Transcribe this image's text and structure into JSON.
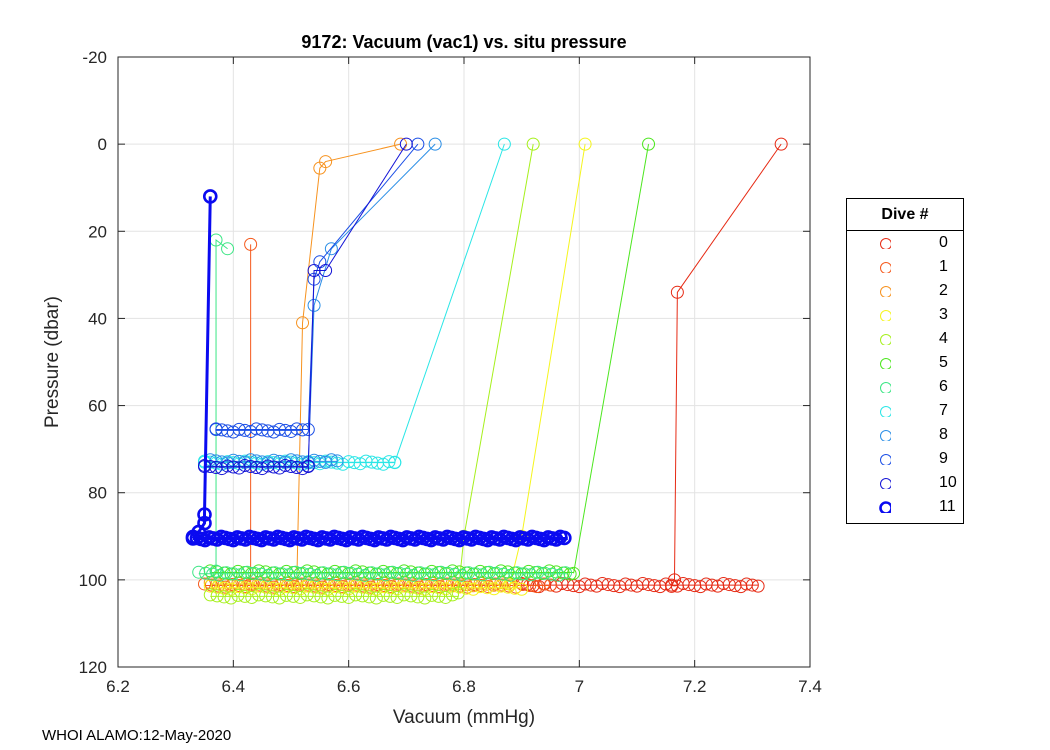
{
  "chart_data": {
    "type": "scatter",
    "title": "9172: Vacuum (vac1) vs. situ pressure",
    "xlabel": "Vacuum (mmHg)",
    "ylabel": "Pressure (dbar)",
    "xlim": [
      6.2,
      7.4
    ],
    "ylim": [
      -20,
      120
    ],
    "y_reversed": true,
    "x_ticks": [
      "6.2",
      "6.4",
      "6.6",
      "6.8",
      "7",
      "7.2",
      "7.4"
    ],
    "y_ticks": [
      "-20",
      "0",
      "20",
      "40",
      "60",
      "80",
      "100",
      "120"
    ],
    "grid": true,
    "legend_title": "Dive #",
    "legend_position": "right",
    "series": [
      {
        "name": "0",
        "color": "#e62a14",
        "profiles": [
          [
            [
              7.35,
              0
            ],
            [
              7.17,
              34
            ],
            [
              7.165,
              100
            ],
            [
              7.16,
              101.5
            ]
          ]
        ],
        "floor": {
          "x0": 6.9,
          "x1": 7.31,
          "y": 101.2,
          "step": 0.01
        }
      },
      {
        "name": "1",
        "color": "#f5591c",
        "profiles": [
          [
            [
              6.43,
              23
            ],
            [
              6.43,
              101
            ]
          ]
        ],
        "floor": {
          "x0": 6.35,
          "x1": 6.95,
          "y": 101.3,
          "step": 0.012
        }
      },
      {
        "name": "2",
        "color": "#f7921e",
        "profiles": [
          [
            [
              6.69,
              0
            ],
            [
              6.56,
              4
            ],
            [
              6.55,
              5.5
            ],
            [
              6.52,
              41
            ],
            [
              6.51,
              101
            ]
          ]
        ],
        "floor": {
          "x0": 6.36,
          "x1": 6.88,
          "y": 101.0,
          "step": 0.012
        }
      },
      {
        "name": "3",
        "color": "#f5f51c",
        "profiles": [
          [
            [
              7.01,
              0
            ],
            [
              6.9,
              90
            ],
            [
              6.88,
              101
            ]
          ]
        ],
        "floor": {
          "x0": 6.36,
          "x1": 6.9,
          "y": 101.8,
          "step": 0.012
        }
      },
      {
        "name": "4",
        "color": "#a6f01c",
        "profiles": [
          [
            [
              6.92,
              0
            ],
            [
              6.8,
              90
            ],
            [
              6.79,
              103
            ]
          ]
        ],
        "floor": {
          "x0": 6.36,
          "x1": 6.79,
          "y": 103.8,
          "step": 0.012
        }
      },
      {
        "name": "5",
        "color": "#4ce61e",
        "profiles": [
          [
            [
              7.12,
              0
            ],
            [
              6.99,
              98.5
            ]
          ]
        ],
        "floor": {
          "x0": 6.36,
          "x1": 6.99,
          "y": 98.3,
          "step": 0.012
        }
      },
      {
        "name": "6",
        "color": "#3be684",
        "profiles": [
          [
            [
              6.39,
              24
            ],
            [
              6.37,
              22
            ],
            [
              6.37,
              98
            ]
          ]
        ],
        "floor": {
          "x0": 6.34,
          "x1": 6.98,
          "y": 98.6,
          "step": 0.012
        }
      },
      {
        "name": "7",
        "color": "#2ae6e6",
        "profiles": [
          [
            [
              6.87,
              0
            ],
            [
              6.68,
              73
            ],
            [
              6.35,
              73
            ]
          ]
        ],
        "floor": {
          "x0": 6.35,
          "x1": 6.68,
          "y": 73.1,
          "step": 0.01
        }
      },
      {
        "name": "8",
        "color": "#2a8ee6",
        "profiles": [
          [
            [
              6.75,
              0
            ],
            [
              6.57,
              24
            ],
            [
              6.54,
              37
            ],
            [
              6.53,
              73
            ]
          ]
        ],
        "floor": {
          "x0": 6.36,
          "x1": 6.58,
          "y": 72.8,
          "step": 0.01
        }
      },
      {
        "name": "9",
        "color": "#1a4ee6",
        "profiles": [
          [
            [
              6.72,
              0
            ],
            [
              6.55,
              27
            ],
            [
              6.54,
              31
            ],
            [
              6.53,
              65.5
            ],
            [
              6.37,
              65.5
            ]
          ]
        ],
        "floor": {
          "x0": 6.37,
          "x1": 6.52,
          "y": 65.7,
          "step": 0.01
        }
      },
      {
        "name": "10",
        "color": "#1414d6",
        "profiles": [
          [
            [
              6.7,
              0
            ],
            [
              6.56,
              29
            ],
            [
              6.54,
              29
            ],
            [
              6.53,
              74
            ],
            [
              6.35,
              74
            ]
          ]
        ],
        "floor": {
          "x0": 6.35,
          "x1": 6.53,
          "y": 74.1,
          "step": 0.01
        }
      },
      {
        "name": "11",
        "color": "#0a0af0",
        "bold": true,
        "profiles": [
          [
            [
              6.36,
              12
            ],
            [
              6.35,
              85
            ],
            [
              6.35,
              87
            ],
            [
              6.34,
              89
            ],
            [
              6.33,
              90.5
            ]
          ]
        ],
        "floor": {
          "x0": 6.33,
          "x1": 6.98,
          "y": 90.5,
          "step": 0.007
        }
      }
    ]
  },
  "footer_text": "WHOI ALAMO:12-May-2020"
}
